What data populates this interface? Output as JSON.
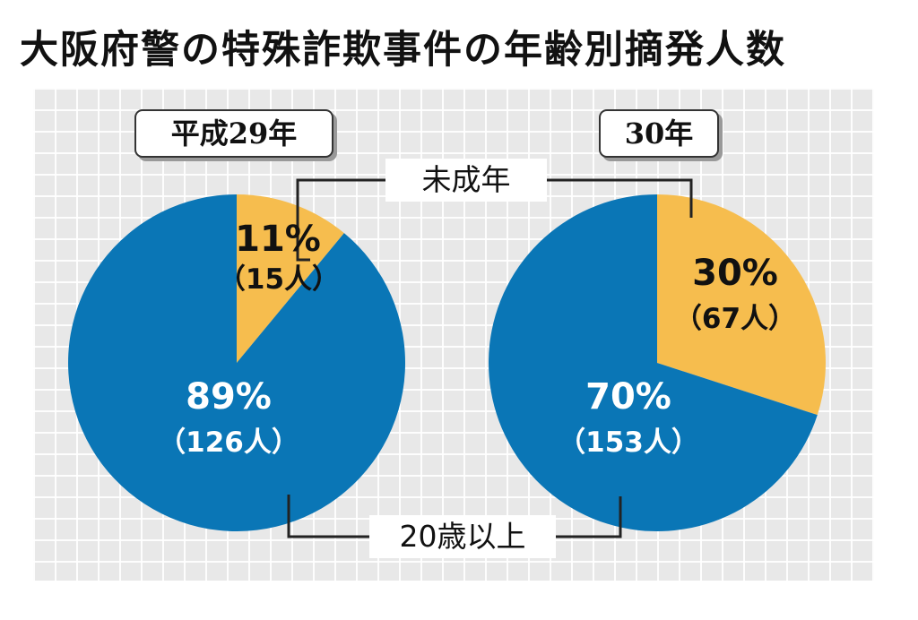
{
  "title": "大阪府警の特殊詐欺事件の年齢別摘発人数",
  "colors": {
    "minor": "#f6bd4e",
    "adult": "#0a76b6",
    "background": "#e8e8e8"
  },
  "callouts": {
    "minor": "未成年",
    "adult": "20歳以上"
  },
  "chart_data": [
    {
      "type": "pie",
      "title": "平成29年",
      "slices": [
        {
          "label": "未成年",
          "percent": 11,
          "count": 15,
          "percent_text": "11%",
          "count_text": "（15人）"
        },
        {
          "label": "20歳以上",
          "percent": 89,
          "count": 126,
          "percent_text": "89%",
          "count_text": "（126人）"
        }
      ]
    },
    {
      "type": "pie",
      "title": "30年",
      "slices": [
        {
          "label": "未成年",
          "percent": 30,
          "count": 67,
          "percent_text": "30%",
          "count_text": "（67人）"
        },
        {
          "label": "20歳以上",
          "percent": 70,
          "count": 153,
          "percent_text": "70%",
          "count_text": "（153人）"
        }
      ]
    }
  ]
}
